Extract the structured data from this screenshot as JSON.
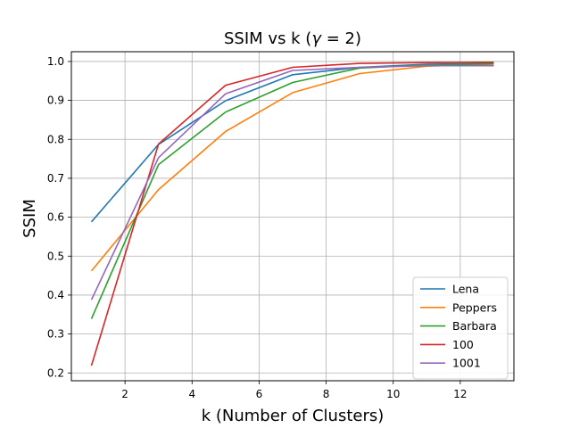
{
  "chart_data": {
    "type": "line",
    "title": "SSIM vs k (γ = 2)",
    "title_prefix": "SSIM vs k (",
    "title_symbol": "γ",
    "title_suffix": " = 2)",
    "xlabel": "k (Number of Clusters)",
    "ylabel": "SSIM",
    "xlim": [
      0.4,
      13.6
    ],
    "ylim": [
      0.18,
      1.025
    ],
    "xticks": [
      2,
      4,
      6,
      8,
      10,
      12
    ],
    "yticks": [
      0.2,
      0.3,
      0.4,
      0.5,
      0.6,
      0.7,
      0.8,
      0.9,
      1.0
    ],
    "ytick_labels": [
      "0.2",
      "0.3",
      "0.4",
      "0.5",
      "0.6",
      "0.7",
      "0.8",
      "0.9",
      "1.0"
    ],
    "grid": true,
    "legend_position": "lower-right",
    "x": [
      1,
      3,
      5,
      7,
      9,
      11,
      13
    ],
    "series": [
      {
        "name": "Lena",
        "color": "#1f77b4",
        "values": [
          0.588,
          0.787,
          0.899,
          0.966,
          0.985,
          0.993,
          0.995
        ]
      },
      {
        "name": "Peppers",
        "color": "#ff7f0e",
        "values": [
          0.462,
          0.671,
          0.82,
          0.92,
          0.969,
          0.988,
          0.993
        ]
      },
      {
        "name": "Barbara",
        "color": "#2ca02c",
        "values": [
          0.339,
          0.735,
          0.87,
          0.946,
          0.983,
          0.991,
          0.994
        ]
      },
      {
        "name": "100",
        "color": "#d62728",
        "values": [
          0.219,
          0.788,
          0.939,
          0.985,
          0.995,
          0.997,
          0.998
        ]
      },
      {
        "name": "1001",
        "color": "#9467bd",
        "values": [
          0.388,
          0.753,
          0.917,
          0.977,
          0.985,
          0.989,
          0.989
        ]
      }
    ]
  }
}
